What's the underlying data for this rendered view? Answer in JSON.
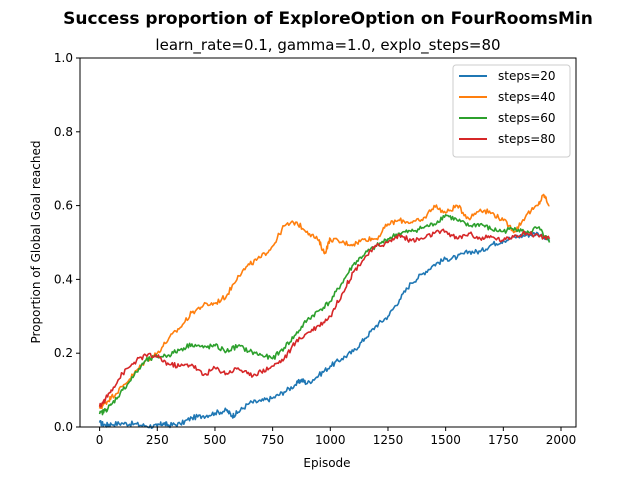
{
  "chart_data": {
    "type": "line",
    "title": "Success proportion of ExploreOption on FourRoomsMin",
    "subtitle": "learn_rate=0.1, gamma=1.0, explo_steps=80",
    "xlabel": "Episode",
    "ylabel": "Proportion of Global Goal reached",
    "xlim": [
      -85,
      2065
    ],
    "ylim": [
      0,
      1.0
    ],
    "xticks": [
      0,
      250,
      500,
      750,
      1000,
      1250,
      1500,
      1750,
      2000
    ],
    "yticks": [
      0.0,
      0.2,
      0.4,
      0.6,
      0.8,
      1.0
    ],
    "legend_position": "top-right",
    "grid": false,
    "series": [
      {
        "name": "steps=20",
        "color": "#1f77b4",
        "x": [
          0,
          25,
          50,
          100,
          150,
          200,
          250,
          275,
          300,
          350,
          400,
          450,
          500,
          550,
          575,
          600,
          650,
          700,
          750,
          800,
          850,
          875,
          900,
          950,
          1000,
          1050,
          1100,
          1150,
          1200,
          1250,
          1300,
          1350,
          1400,
          1450,
          1500,
          1550,
          1600,
          1650,
          1700,
          1750,
          1800,
          1850,
          1900,
          1950
        ],
        "y": [
          0.012,
          0.005,
          0.008,
          0.01,
          0.008,
          0.003,
          0.002,
          0.01,
          0.005,
          0.008,
          0.025,
          0.03,
          0.038,
          0.045,
          0.03,
          0.04,
          0.065,
          0.07,
          0.078,
          0.095,
          0.115,
          0.128,
          0.118,
          0.14,
          0.165,
          0.185,
          0.205,
          0.24,
          0.275,
          0.3,
          0.345,
          0.39,
          0.415,
          0.44,
          0.455,
          0.46,
          0.475,
          0.475,
          0.495,
          0.505,
          0.515,
          0.52,
          0.525,
          0.505
        ]
      },
      {
        "name": "steps=40",
        "color": "#ff7f0e",
        "x": [
          0,
          25,
          50,
          100,
          150,
          200,
          250,
          300,
          350,
          400,
          450,
          500,
          550,
          600,
          650,
          700,
          750,
          800,
          850,
          900,
          950,
          975,
          1000,
          1050,
          1100,
          1150,
          1200,
          1250,
          1300,
          1350,
          1400,
          1450,
          1500,
          1550,
          1600,
          1650,
          1700,
          1750,
          1800,
          1850,
          1900,
          1925,
          1950
        ],
        "y": [
          0.05,
          0.065,
          0.08,
          0.11,
          0.145,
          0.18,
          0.2,
          0.24,
          0.27,
          0.31,
          0.33,
          0.335,
          0.355,
          0.41,
          0.44,
          0.46,
          0.49,
          0.545,
          0.555,
          0.53,
          0.505,
          0.47,
          0.51,
          0.5,
          0.495,
          0.51,
          0.51,
          0.55,
          0.56,
          0.555,
          0.56,
          0.6,
          0.58,
          0.6,
          0.565,
          0.59,
          0.58,
          0.56,
          0.53,
          0.575,
          0.6,
          0.63,
          0.6
        ]
      },
      {
        "name": "steps=60",
        "color": "#2ca02c",
        "x": [
          0,
          25,
          50,
          100,
          150,
          200,
          250,
          300,
          350,
          400,
          450,
          500,
          550,
          600,
          650,
          700,
          750,
          800,
          850,
          900,
          950,
          1000,
          1050,
          1100,
          1150,
          1200,
          1250,
          1300,
          1350,
          1400,
          1450,
          1500,
          1550,
          1600,
          1650,
          1700,
          1750,
          1800,
          1850,
          1900,
          1950
        ],
        "y": [
          0.035,
          0.045,
          0.06,
          0.1,
          0.14,
          0.18,
          0.19,
          0.195,
          0.21,
          0.225,
          0.215,
          0.22,
          0.205,
          0.22,
          0.205,
          0.195,
          0.185,
          0.215,
          0.25,
          0.29,
          0.315,
          0.34,
          0.39,
          0.44,
          0.47,
          0.49,
          0.51,
          0.525,
          0.53,
          0.54,
          0.55,
          0.575,
          0.56,
          0.545,
          0.55,
          0.535,
          0.53,
          0.54,
          0.525,
          0.54,
          0.5
        ]
      },
      {
        "name": "steps=80",
        "color": "#d62728",
        "x": [
          0,
          25,
          50,
          100,
          150,
          200,
          250,
          300,
          350,
          400,
          450,
          500,
          550,
          600,
          650,
          700,
          750,
          800,
          850,
          900,
          950,
          1000,
          1050,
          1100,
          1150,
          1200,
          1250,
          1300,
          1350,
          1400,
          1450,
          1500,
          1550,
          1600,
          1650,
          1700,
          1750,
          1800,
          1850,
          1900,
          1950
        ],
        "y": [
          0.055,
          0.075,
          0.1,
          0.145,
          0.175,
          0.195,
          0.19,
          0.17,
          0.165,
          0.17,
          0.14,
          0.16,
          0.145,
          0.16,
          0.14,
          0.15,
          0.165,
          0.185,
          0.23,
          0.255,
          0.275,
          0.3,
          0.36,
          0.42,
          0.46,
          0.49,
          0.5,
          0.52,
          0.505,
          0.51,
          0.525,
          0.53,
          0.51,
          0.525,
          0.51,
          0.515,
          0.505,
          0.52,
          0.525,
          0.52,
          0.51
        ]
      }
    ]
  }
}
